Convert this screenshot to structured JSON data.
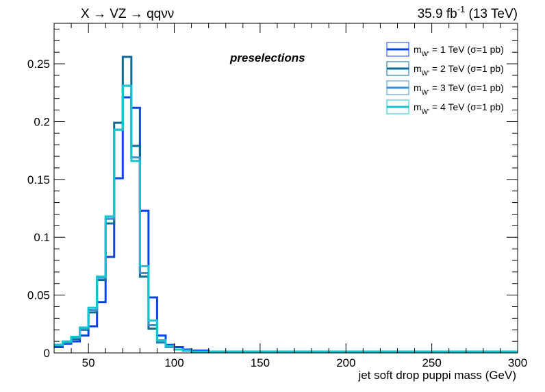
{
  "chart_data": {
    "type": "line",
    "title_left": "X → VZ → qqνν",
    "title_right": "35.9 fb⁻¹  (13 TeV)",
    "annotation": "preselections",
    "xlabel": "jet soft drop puppi mass (GeV)",
    "ylabel": "",
    "xlim": [
      30,
      300
    ],
    "ylim": [
      0,
      0.285
    ],
    "x_ticks": [
      50,
      100,
      150,
      200,
      250,
      300
    ],
    "y_ticks": [
      0,
      0.05,
      0.1,
      0.15,
      0.2,
      0.25
    ],
    "y_tick_labels": [
      "0",
      "0.05",
      "0.1",
      "0.15",
      "0.2",
      "0.25"
    ],
    "bin_width": 5,
    "bin_edges_start": 30,
    "legend_position": "top-right",
    "grid": false,
    "series": [
      {
        "name": "m_W' = 1 TeV (σ=1 pb)",
        "color": "#0b45e0",
        "values": [
          0.005,
          0.008,
          0.01,
          0.015,
          0.023,
          0.044,
          0.083,
          0.151,
          0.221,
          0.212,
          0.123,
          0.048,
          0.015,
          0.007,
          0.005,
          0.003,
          0.002,
          0.002,
          0.001,
          0.001,
          0.001,
          0.001,
          0.001,
          0.001,
          0.001,
          0.001,
          0.001,
          0.001,
          0.001,
          0.001,
          0.001,
          0.001,
          0.001,
          0.001,
          0.001,
          0.001,
          0.001,
          0.001,
          0.001,
          0.001,
          0.001,
          0.001,
          0.001,
          0.001,
          0.001,
          0.001,
          0.001,
          0.001,
          0.001,
          0.001,
          0.001,
          0.001,
          0.001,
          0.001
        ]
      },
      {
        "name": "m_W' = 2 TeV (σ=1 pb)",
        "color": "#0a6a94",
        "values": [
          0.007,
          0.009,
          0.012,
          0.02,
          0.035,
          0.063,
          0.112,
          0.199,
          0.256,
          0.179,
          0.066,
          0.021,
          0.009,
          0.005,
          0.003,
          0.002,
          0.001,
          0.001,
          0.001,
          0.001,
          0.001,
          0.001,
          0.001,
          0.001,
          0.001,
          0.001,
          0.001,
          0.001,
          0.001,
          0.001,
          0.001,
          0.001,
          0.001,
          0.001,
          0.001,
          0.001,
          0.001,
          0.001,
          0.001,
          0.001,
          0.001,
          0.001,
          0.001,
          0.001,
          0.001,
          0.001,
          0.001,
          0.001,
          0.001,
          0.001,
          0.001,
          0.001,
          0.001,
          0.001
        ]
      },
      {
        "name": "m_W' = 3 TeV (σ=1 pb)",
        "color": "#3d8fd0",
        "values": [
          0.007,
          0.009,
          0.013,
          0.021,
          0.037,
          0.065,
          0.116,
          0.193,
          0.231,
          0.169,
          0.069,
          0.024,
          0.01,
          0.005,
          0.003,
          0.002,
          0.001,
          0.001,
          0.001,
          0.001,
          0.001,
          0.001,
          0.001,
          0.001,
          0.001,
          0.001,
          0.001,
          0.001,
          0.001,
          0.001,
          0.001,
          0.001,
          0.001,
          0.001,
          0.001,
          0.001,
          0.001,
          0.001,
          0.001,
          0.001,
          0.001,
          0.001,
          0.001,
          0.001,
          0.001,
          0.001,
          0.001,
          0.001,
          0.001,
          0.001,
          0.001,
          0.001,
          0.001,
          0.001
        ]
      },
      {
        "name": "m_W' = 4 TeV (σ=1 pb)",
        "color": "#14c4cf",
        "values": [
          0.007,
          0.01,
          0.014,
          0.022,
          0.039,
          0.066,
          0.118,
          0.193,
          0.231,
          0.166,
          0.075,
          0.028,
          0.011,
          0.006,
          0.003,
          0.002,
          0.001,
          0.001,
          0.001,
          0.001,
          0.001,
          0.001,
          0.001,
          0.001,
          0.001,
          0.001,
          0.001,
          0.001,
          0.001,
          0.001,
          0.001,
          0.001,
          0.001,
          0.001,
          0.001,
          0.001,
          0.001,
          0.001,
          0.001,
          0.001,
          0.001,
          0.001,
          0.001,
          0.001,
          0.001,
          0.001,
          0.001,
          0.001,
          0.001,
          0.001,
          0.001,
          0.001,
          0.001,
          0.001
        ]
      }
    ],
    "legend_labels": [
      {
        "m": "m",
        "sub": "W'",
        "rest": " = 1 TeV (σ=1 pb)"
      },
      {
        "m": "m",
        "sub": "W'",
        "rest": " = 2 TeV (σ=1 pb)"
      },
      {
        "m": "m",
        "sub": "W'",
        "rest": " = 3 TeV (σ=1 pb)"
      },
      {
        "m": "m",
        "sub": "W'",
        "rest": " = 4 TeV (σ=1 pb)"
      }
    ]
  }
}
